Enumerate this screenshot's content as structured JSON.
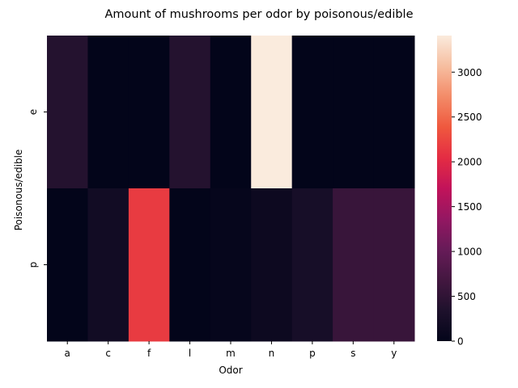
{
  "chart_data": {
    "type": "heatmap",
    "title": "Amount of mushrooms per odor by poisonous/edible",
    "xlabel": "Odor",
    "ylabel": "Poisonous/edible",
    "x_categories": [
      "a",
      "c",
      "f",
      "l",
      "m",
      "n",
      "p",
      "s",
      "y"
    ],
    "y_categories": [
      "e",
      "p"
    ],
    "values": [
      [
        400,
        0,
        0,
        400,
        0,
        3408,
        0,
        0,
        0
      ],
      [
        0,
        192,
        2160,
        0,
        36,
        120,
        256,
        576,
        576
      ]
    ],
    "colorbar": {
      "min": 0,
      "max": 3408,
      "ticks": [
        0,
        500,
        1000,
        1500,
        2000,
        2500,
        3000
      ],
      "colormap": "rocket"
    },
    "grid": false
  }
}
